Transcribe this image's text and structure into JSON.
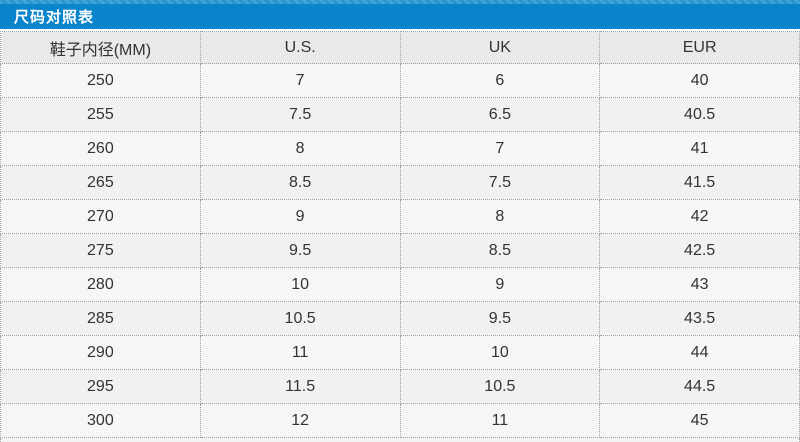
{
  "title": "尺码对照表",
  "colors": {
    "accent_blue": "#0a85cc",
    "accent_strip_blue": "#2b94cf",
    "header_row_bg": "#e9e9ea",
    "row_bg": "#f6f6f7",
    "dotted_border": "#a0a0a0",
    "title_text": "#ffffff",
    "cell_text": "#333333"
  },
  "chart_data": {
    "type": "table",
    "title": "尺码对照表",
    "columns": [
      "鞋子内径(MM)",
      "U.S.",
      "UK",
      "EUR"
    ],
    "rows": [
      [
        "250",
        "7",
        "6",
        "40"
      ],
      [
        "255",
        "7.5",
        "6.5",
        "40.5"
      ],
      [
        "260",
        "8",
        "7",
        "41"
      ],
      [
        "265",
        "8.5",
        "7.5",
        "41.5"
      ],
      [
        "270",
        "9",
        "8",
        "42"
      ],
      [
        "275",
        "9.5",
        "8.5",
        "42.5"
      ],
      [
        "280",
        "10",
        "9",
        "43"
      ],
      [
        "285",
        "10.5",
        "9.5",
        "43.5"
      ],
      [
        "290",
        "11",
        "10",
        "44"
      ],
      [
        "295",
        "11.5",
        "10.5",
        "44.5"
      ],
      [
        "300",
        "12",
        "11",
        "45"
      ]
    ]
  }
}
